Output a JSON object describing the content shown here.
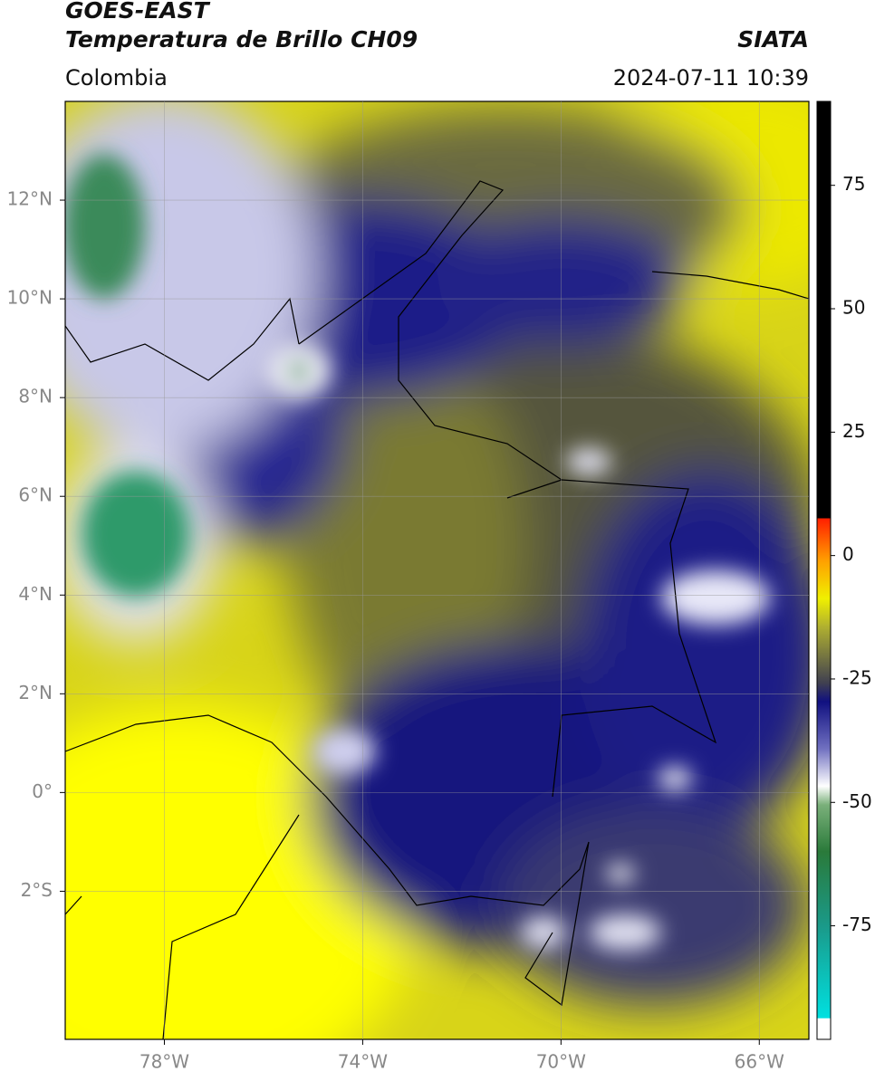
{
  "header": {
    "title": "GOES-EAST",
    "subtitle": "Temperatura de Brillo CH09",
    "source": "SIATA",
    "region": "Colombia",
    "datetime": "2024-07-11 10:39"
  },
  "map": {
    "xlim": [
      -80,
      -65
    ],
    "ylim": [
      -5,
      14
    ],
    "xticks": [
      {
        "value": -78,
        "label": "78°W"
      },
      {
        "value": -74,
        "label": "74°W"
      },
      {
        "value": -70,
        "label": "70°W"
      },
      {
        "value": -66,
        "label": "66°W"
      }
    ],
    "yticks": [
      {
        "value": 12,
        "label": "12°N"
      },
      {
        "value": 10,
        "label": "10°N"
      },
      {
        "value": 8,
        "label": "8°N"
      },
      {
        "value": 6,
        "label": "6°N"
      },
      {
        "value": 4,
        "label": "4°N"
      },
      {
        "value": 2,
        "label": "2°N"
      },
      {
        "value": 0,
        "label": "0°"
      },
      {
        "value": -2,
        "label": "2°S"
      }
    ],
    "grid": true
  },
  "colorbar": {
    "lim": [
      -98,
      92
    ],
    "ticks": [
      75,
      50,
      25,
      0,
      -25,
      -50,
      -75
    ]
  }
}
